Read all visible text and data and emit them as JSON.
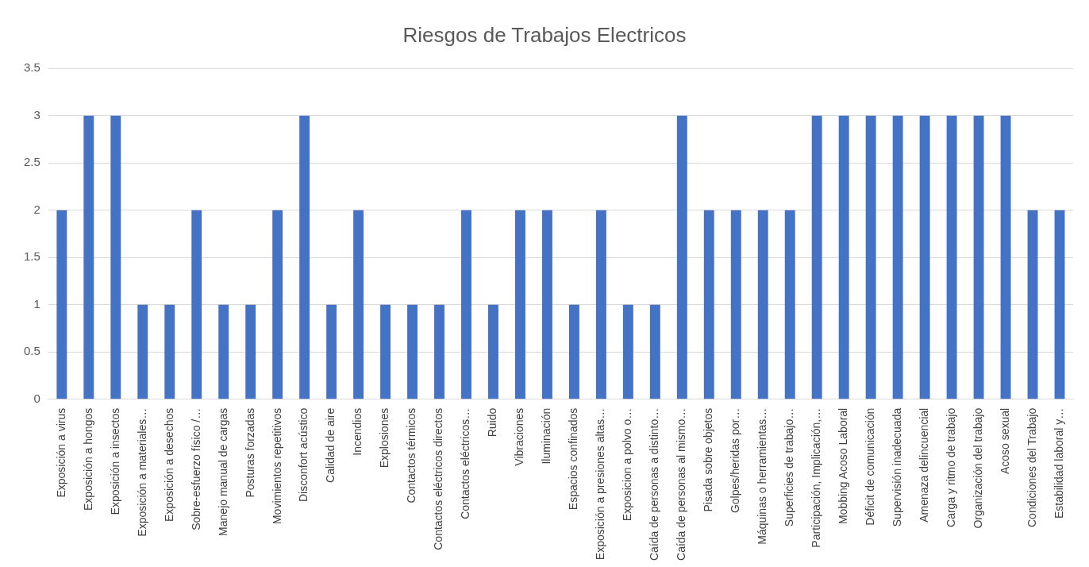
{
  "chart_data": {
    "type": "bar",
    "title": "Riesgos de Trabajos Electricos",
    "categories": [
      "Exposición a virus",
      "Exposición a hongos",
      "Exposición a insectos",
      "Exposición a materiales…",
      "Exposición a desechos",
      "Sobre-esfuerzo físico /…",
      "Manejo manual de cargas",
      "Posturas forzadas",
      "Movimientos repetitivos",
      "Disconfort acústico",
      "Calidad de aire",
      "Incendios",
      "Explosiones",
      "Contactos térmicos",
      "Contactos eléctricos directos",
      "Contactos eléctricos…",
      "Ruido",
      "Vibraciones",
      "Iluminación",
      "Espacios confinados",
      "Exposición a presiones altas…",
      "Exposicion a polvo o…",
      "Caída de personas a distinto…",
      "Caída de personas al mismo…",
      "Pisada sobre objetos",
      "Golpes/heridas por…",
      "Máquinas o herramientas…",
      "Superficies de trabajo…",
      "Participación, Implicación,…",
      "Mobbing Acoso Laboral",
      "Déficit de comunicación",
      "Supervisión inadecuada",
      "Amenaza delincuencial",
      "Carga y ritmo de trabajo",
      "Organización del trabajo",
      "Acoso sexual",
      "Condiciones del Trabajo",
      "Estabilidad laboral y…"
    ],
    "values": [
      2,
      3,
      3,
      1,
      1,
      2,
      1,
      1,
      2,
      3,
      1,
      2,
      1,
      1,
      1,
      2,
      1,
      2,
      2,
      1,
      2,
      1,
      1,
      3,
      2,
      2,
      2,
      2,
      3,
      3,
      3,
      3,
      3,
      3,
      3,
      3,
      2,
      2
    ],
    "color": "#4472c4",
    "ylim": [
      0,
      3.5
    ],
    "yticks": [
      0,
      0.5,
      1,
      1.5,
      2,
      2.5,
      3,
      3.5
    ],
    "grid": "y"
  }
}
